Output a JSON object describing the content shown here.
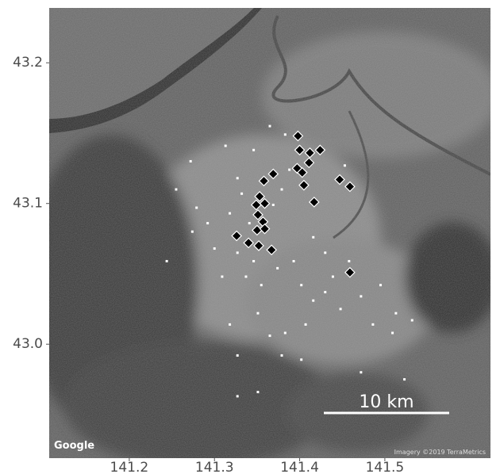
{
  "chart_data": {
    "type": "scatter",
    "xlim": [
      141.106,
      141.624
    ],
    "ylim": [
      42.919,
      43.239
    ],
    "xticks": [
      141.2,
      141.3,
      141.4,
      141.5
    ],
    "yticks": [
      43.2,
      43.1,
      {
        "value": 43,
        "label": "43.0"
      }
    ],
    "series": [
      {
        "marker": "point",
        "color": "#ffffff",
        "x": [
          141.272,
          141.255,
          141.279,
          141.292,
          141.274,
          141.313,
          141.346,
          141.365,
          141.383,
          141.327,
          141.332,
          141.318,
          141.341,
          141.327,
          141.346,
          141.337,
          141.355,
          141.374,
          141.393,
          141.402,
          141.416,
          141.43,
          141.448,
          141.472,
          141.486,
          141.509,
          141.513,
          141.532,
          141.458,
          141.439,
          141.407,
          141.383,
          141.365,
          141.351,
          141.318,
          141.327,
          141.379,
          141.402,
          141.472,
          141.523,
          141.351,
          141.327,
          141.369,
          141.379,
          141.388,
          141.453,
          141.416,
          141.43,
          141.495,
          141.309,
          141.3,
          141.244
        ],
        "y": [
          43.13,
          43.11,
          43.097,
          43.086,
          43.08,
          43.141,
          43.138,
          43.155,
          43.149,
          43.118,
          43.107,
          43.093,
          43.086,
          43.065,
          43.059,
          43.048,
          43.042,
          43.054,
          43.059,
          43.042,
          43.031,
          43.037,
          43.025,
          43.034,
          43.014,
          43.008,
          43.022,
          43.017,
          43.059,
          43.048,
          43.014,
          43.008,
          43.006,
          43.022,
          43.014,
          42.992,
          42.992,
          42.989,
          42.98,
          42.975,
          42.966,
          42.963,
          43.099,
          43.11,
          43.124,
          43.127,
          43.076,
          43.065,
          43.042,
          43.048,
          43.068,
          43.059
        ]
      },
      {
        "marker": "diamond",
        "color": "#000000",
        "x": [
          141.398,
          141.4,
          141.412,
          141.424,
          141.397,
          141.403,
          141.411,
          141.405,
          141.417,
          141.447,
          141.459,
          141.369,
          141.358,
          141.353,
          141.349,
          141.359,
          141.351,
          141.357,
          141.35,
          141.359,
          141.326,
          141.34,
          141.352,
          141.367,
          141.459
        ],
        "y": [
          43.148,
          43.138,
          43.136,
          43.138,
          43.125,
          43.122,
          43.129,
          43.113,
          43.101,
          43.117,
          43.112,
          43.121,
          43.116,
          43.105,
          43.099,
          43.1,
          43.092,
          43.087,
          43.081,
          43.082,
          43.077,
          43.072,
          43.07,
          43.067,
          43.051
        ]
      }
    ],
    "scale_bar_label": "10 km",
    "logo": "Google",
    "attribution": "Imagery ©2019 TerraMetrics"
  }
}
